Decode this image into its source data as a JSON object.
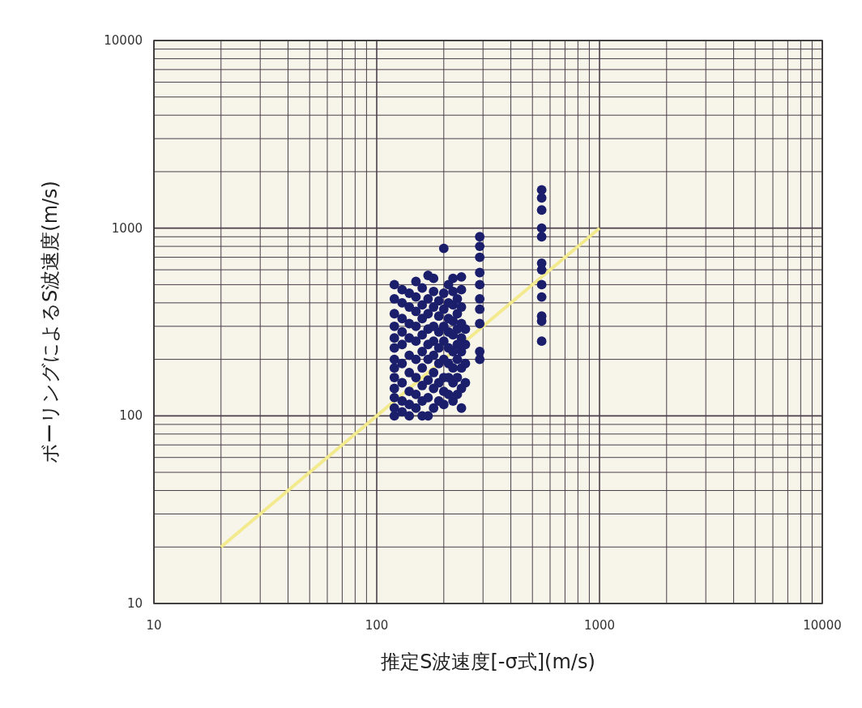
{
  "chart_data": {
    "type": "scatter",
    "xlabel": "推定S波速度[-σ式](m/s)",
    "ylabel": "ボーリングによるS波速度(m/s)",
    "xlim": [
      10,
      10000
    ],
    "ylim": [
      10,
      10000
    ],
    "xticks": [
      10,
      100,
      1000,
      10000
    ],
    "yticks": [
      10,
      100,
      1000,
      10000
    ],
    "log": "xy",
    "grid": true,
    "series": [
      {
        "marker": "circle",
        "color": "#1b1f6b",
        "x": [
          120,
          120,
          120,
          120,
          120,
          120,
          120,
          120,
          120,
          120,
          120,
          120,
          120,
          130,
          130,
          130,
          130,
          130,
          130,
          130,
          130,
          130,
          140,
          140,
          140,
          140,
          140,
          140,
          140,
          140,
          140,
          150,
          150,
          150,
          150,
          150,
          150,
          150,
          150,
          150,
          160,
          160,
          160,
          160,
          160,
          160,
          160,
          160,
          160,
          170,
          170,
          170,
          170,
          170,
          170,
          170,
          170,
          170,
          180,
          180,
          180,
          180,
          180,
          180,
          180,
          180,
          180,
          190,
          190,
          190,
          190,
          190,
          190,
          190,
          200,
          200,
          200,
          200,
          200,
          200,
          200,
          200,
          200,
          210,
          210,
          210,
          210,
          210,
          210,
          210,
          210,
          220,
          220,
          220,
          220,
          220,
          220,
          220,
          220,
          220,
          230,
          230,
          230,
          230,
          230,
          230,
          230,
          240,
          240,
          240,
          240,
          240,
          240,
          240,
          240,
          240,
          250,
          250,
          250,
          250,
          290,
          290,
          290,
          290,
          290,
          290,
          290,
          290,
          290,
          290,
          550,
          550,
          550,
          550,
          550,
          550,
          550,
          550,
          550,
          550,
          550,
          550
        ],
        "values": [
          100,
          110,
          125,
          140,
          160,
          180,
          200,
          230,
          260,
          300,
          350,
          420,
          500,
          105,
          120,
          150,
          190,
          240,
          280,
          330,
          400,
          470,
          100,
          115,
          135,
          170,
          210,
          260,
          310,
          380,
          450,
          110,
          130,
          160,
          200,
          250,
          300,
          360,
          430,
          520,
          100,
          120,
          145,
          180,
          220,
          270,
          330,
          390,
          480,
          100,
          125,
          155,
          200,
          240,
          290,
          350,
          420,
          560,
          110,
          140,
          170,
          210,
          250,
          300,
          380,
          460,
          540,
          120,
          150,
          190,
          230,
          280,
          340,
          410,
          115,
          135,
          160,
          200,
          250,
          300,
          370,
          450,
          780,
          130,
          160,
          190,
          230,
          280,
          330,
          400,
          500,
          120,
          150,
          180,
          220,
          270,
          320,
          390,
          460,
          540,
          130,
          160,
          200,
          240,
          290,
          350,
          420,
          110,
          140,
          180,
          220,
          260,
          310,
          380,
          470,
          550,
          150,
          190,
          240,
          290,
          200,
          220,
          310,
          370,
          420,
          500,
          580,
          700,
          800,
          900,
          250,
          320,
          340,
          430,
          500,
          600,
          650,
          900,
          1000,
          1250,
          1450,
          1600
        ]
      },
      {
        "type": "line",
        "marker": "none",
        "color": "#f2ea8c",
        "x": [
          20,
          1000
        ],
        "values": [
          20,
          1000
        ]
      }
    ]
  }
}
